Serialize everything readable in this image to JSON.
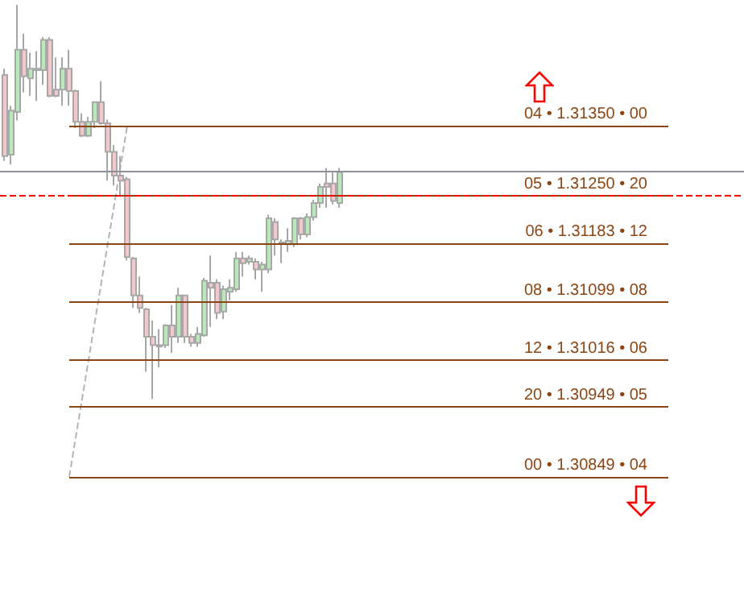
{
  "chart_data": {
    "type": "candlestick",
    "categories": [
      null,
      null,
      null,
      null,
      null,
      null,
      null,
      null,
      null,
      null,
      null,
      null,
      null,
      null,
      null,
      null,
      null,
      null,
      null,
      null,
      null,
      null,
      null,
      null,
      null,
      null,
      null,
      null,
      null,
      null,
      null,
      null,
      null,
      null,
      null,
      null,
      null,
      null,
      null,
      null,
      null,
      null,
      null,
      null,
      null,
      null,
      null,
      null,
      null,
      null,
      null,
      null,
      null
    ],
    "ohlc": [
      [
        1.31423,
        1.31432,
        1.313,
        1.31307
      ],
      [
        1.31309,
        1.31379,
        1.31295,
        1.31372
      ],
      [
        1.3137,
        1.31523,
        1.31358,
        1.31459
      ],
      [
        1.31459,
        1.31482,
        1.31398,
        1.31421
      ],
      [
        1.31418,
        1.31455,
        1.31393,
        1.31432
      ],
      [
        1.31432,
        1.31457,
        1.31386,
        1.3143
      ],
      [
        1.3143,
        1.31477,
        1.31409,
        1.31473
      ],
      [
        1.31473,
        1.31477,
        1.31391,
        1.31393
      ],
      [
        1.31402,
        1.31448,
        1.31391,
        1.31393
      ],
      [
        1.31402,
        1.31448,
        1.31379,
        1.31432
      ],
      [
        1.31432,
        1.31459,
        1.31379,
        1.314
      ],
      [
        1.314,
        1.31402,
        1.31347,
        1.31356
      ],
      [
        1.31356,
        1.31368,
        1.31334,
        1.31336
      ],
      [
        1.31336,
        1.31363,
        1.31334,
        1.31356
      ],
      [
        1.31356,
        1.31384,
        1.31347,
        1.31384
      ],
      [
        1.31384,
        1.31414,
        1.31352,
        1.31354
      ],
      [
        1.31354,
        1.31359,
        1.31272,
        1.31313
      ],
      [
        1.31313,
        1.31323,
        1.31265,
        1.31279
      ],
      [
        1.31279,
        1.31307,
        1.31249,
        1.31272
      ],
      [
        1.31274,
        1.31277,
        1.31158,
        1.31163
      ],
      [
        1.31161,
        1.31163,
        1.3109,
        1.31108
      ],
      [
        1.31108,
        1.31135,
        1.31083,
        1.3109
      ],
      [
        1.31088,
        1.3109,
        1.30999,
        1.31049
      ],
      [
        1.31049,
        1.31072,
        1.3096,
        1.31037
      ],
      [
        1.31035,
        1.3106,
        1.31005,
        1.31037
      ],
      [
        1.31037,
        1.31067,
        1.31033,
        1.31065
      ],
      [
        1.31065,
        1.31094,
        1.31026,
        1.31049
      ],
      [
        1.31049,
        1.31119,
        1.3104,
        1.31108
      ],
      [
        1.31108,
        1.31108,
        1.3104,
        1.31049
      ],
      [
        1.31049,
        1.31053,
        1.31035,
        1.3104
      ],
      [
        1.3104,
        1.31063,
        1.31035,
        1.31053
      ],
      [
        1.31051,
        1.31133,
        1.31049,
        1.31129
      ],
      [
        1.31126,
        1.31165,
        1.31063,
        1.31119
      ],
      [
        1.31126,
        1.31131,
        1.31074,
        1.31083
      ],
      [
        1.31085,
        1.31122,
        1.31074,
        1.31117
      ],
      [
        1.31113,
        1.31131,
        1.31101,
        1.31119
      ],
      [
        1.31117,
        1.3117,
        1.31113,
        1.31161
      ],
      [
        1.31161,
        1.3117,
        1.31135,
        1.31154
      ],
      [
        1.31156,
        1.31165,
        1.31152,
        1.31161
      ],
      [
        1.31156,
        1.31161,
        1.31131,
        1.31145
      ],
      [
        1.31145,
        1.31156,
        1.31113,
        1.31152
      ],
      [
        1.31145,
        1.31223,
        1.3114,
        1.31218
      ],
      [
        1.31213,
        1.31218,
        1.31165,
        1.31188
      ],
      [
        1.31183,
        1.31188,
        1.31154,
        1.31184
      ],
      [
        1.31181,
        1.31204,
        1.3117,
        1.31186
      ],
      [
        1.31181,
        1.3122,
        1.31177,
        1.31218
      ],
      [
        1.31218,
        1.3122,
        1.31188,
        1.31195
      ],
      [
        1.31195,
        1.31225,
        1.31191,
        1.3122
      ],
      [
        1.3122,
        1.31245,
        1.31215,
        1.3124
      ],
      [
        1.3124,
        1.31268,
        1.31233,
        1.31263
      ],
      [
        1.31268,
        1.3129,
        1.31233,
        1.31263
      ],
      [
        1.31268,
        1.31284,
        1.31238,
        1.31243
      ],
      [
        1.3124,
        1.3129,
        1.31233,
        1.31284
      ]
    ],
    "series": [
      {
        "type": "line",
        "color": "#b4b4b4",
        "line_style": "dashed",
        "values": [
          null,
          null,
          null,
          null,
          null,
          null,
          null,
          null,
          null,
          null,
          1.30849,
          null,
          null,
          null,
          null,
          null,
          null,
          null,
          null,
          1.3135,
          null,
          null,
          null,
          null,
          null,
          null,
          null,
          null,
          null,
          null,
          null,
          null,
          null,
          null,
          null,
          null,
          null,
          null,
          null,
          null,
          null,
          null,
          null,
          null,
          null,
          null,
          null,
          null,
          null,
          null,
          null,
          null,
          null
        ]
      }
    ],
    "ylim": [
      1.3066,
      1.3153
    ],
    "tick_labels": false,
    "grid": false,
    "ref_lines": [
      {
        "axis": "y",
        "value": 1.3125,
        "color": "#ff0000",
        "line_style": "dashed"
      },
      {
        "axis": "y",
        "value": 1.31286,
        "color": "#8c9099",
        "line_style": "solid"
      },
      {
        "axis": "y",
        "value": 1.3135,
        "label": "04 • 1.31350 • 00",
        "color": "#8b4513",
        "line_style": "solid"
      },
      {
        "axis": "y",
        "value": 1.3125,
        "label": "05 • 1.31250 • 20",
        "color": "#8b4513",
        "line_style": "solid"
      },
      {
        "axis": "y",
        "value": 1.31183,
        "label": "06 • 1.31183 • 12",
        "color": "#8b4513",
        "line_style": "solid"
      },
      {
        "axis": "y",
        "value": 1.31099,
        "label": "08 • 1.31099 • 08",
        "color": "#8b4513",
        "line_style": "solid"
      },
      {
        "axis": "y",
        "value": 1.31016,
        "label": "12 • 1.31016 • 06",
        "color": "#8b4513",
        "line_style": "solid"
      },
      {
        "axis": "y",
        "value": 1.30949,
        "label": "20 • 1.30949 • 05",
        "color": "#8b4513",
        "line_style": "solid"
      },
      {
        "axis": "y",
        "value": 1.30849,
        "label": "00 • 1.30849 • 04",
        "color": "#8b4513",
        "line_style": "solid"
      }
    ]
  }
}
